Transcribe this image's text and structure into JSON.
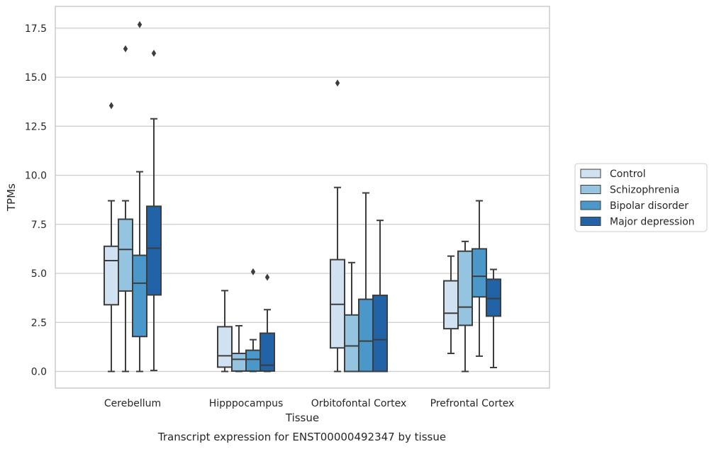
{
  "chart_data": {
    "type": "box",
    "caption": "Transcript expression for ENST00000492347 by tissue",
    "xlabel": "Tissue",
    "ylabel": "TPMs",
    "ylim": [
      -0.85,
      18.6
    ],
    "yticks": [
      0.0,
      2.5,
      5.0,
      7.5,
      10.0,
      12.5,
      15.0,
      17.5
    ],
    "ytick_labels": [
      "0.0",
      "2.5",
      "5.0",
      "7.5",
      "10.0",
      "12.5",
      "15.0",
      "17.5"
    ],
    "grid": "horizontal",
    "legend_position": "right",
    "categories": [
      "Cerebellum",
      "Hipppocampus",
      "Orbitofontal Cortex",
      "Prefrontal Cortex"
    ],
    "series": [
      {
        "name": "Control",
        "color": "#d0e1f2",
        "boxes": [
          {
            "whisker_low": 0.0,
            "q1": 3.4,
            "median": 5.65,
            "q3": 6.38,
            "whisker_high": 8.7,
            "outliers": [
              13.55
            ]
          },
          {
            "whisker_low": 0.0,
            "q1": 0.22,
            "median": 0.8,
            "q3": 2.28,
            "whisker_high": 4.12,
            "outliers": []
          },
          {
            "whisker_low": 0.0,
            "q1": 1.2,
            "median": 3.42,
            "q3": 5.7,
            "whisker_high": 9.38,
            "outliers": [
              14.7
            ]
          },
          {
            "whisker_low": 0.92,
            "q1": 2.18,
            "median": 2.97,
            "q3": 4.62,
            "whisker_high": 5.88,
            "outliers": []
          }
        ]
      },
      {
        "name": "Schizophrenia",
        "color": "#94c4df",
        "boxes": [
          {
            "whisker_low": 0.0,
            "q1": 4.1,
            "median": 6.22,
            "q3": 7.76,
            "whisker_high": 8.7,
            "outliers": [
              16.45
            ]
          },
          {
            "whisker_low": 0.0,
            "q1": 0.02,
            "median": 0.62,
            "q3": 0.92,
            "whisker_high": 2.33,
            "outliers": []
          },
          {
            "whisker_low": 0.0,
            "q1": 0.0,
            "median": 1.3,
            "q3": 2.88,
            "whisker_high": 5.55,
            "outliers": []
          },
          {
            "whisker_low": 0.0,
            "q1": 2.35,
            "median": 3.28,
            "q3": 6.13,
            "whisker_high": 6.63,
            "outliers": []
          }
        ]
      },
      {
        "name": "Bipolar disorder",
        "color": "#4a98c9",
        "boxes": [
          {
            "whisker_low": 0.0,
            "q1": 1.78,
            "median": 4.5,
            "q3": 5.92,
            "whisker_high": 10.18,
            "outliers": [
              17.68
            ]
          },
          {
            "whisker_low": 0.0,
            "q1": 0.02,
            "median": 0.62,
            "q3": 1.08,
            "whisker_high": 1.62,
            "outliers": [
              5.08
            ]
          },
          {
            "whisker_low": 0.0,
            "q1": 0.0,
            "median": 1.55,
            "q3": 3.68,
            "whisker_high": 9.1,
            "outliers": []
          },
          {
            "whisker_low": 0.78,
            "q1": 3.8,
            "median": 4.85,
            "q3": 6.25,
            "whisker_high": 8.7,
            "outliers": []
          }
        ]
      },
      {
        "name": "Major depression",
        "color": "#2263a8",
        "boxes": [
          {
            "whisker_low": 0.05,
            "q1": 3.9,
            "median": 6.28,
            "q3": 8.42,
            "whisker_high": 12.88,
            "outliers": [
              16.22
            ]
          },
          {
            "whisker_low": 0.0,
            "q1": 0.02,
            "median": 0.32,
            "q3": 1.95,
            "whisker_high": 3.15,
            "outliers": [
              4.8
            ]
          },
          {
            "whisker_low": 0.0,
            "q1": 0.0,
            "median": 1.62,
            "q3": 3.88,
            "whisker_high": 7.7,
            "outliers": []
          },
          {
            "whisker_low": 0.2,
            "q1": 2.82,
            "median": 3.72,
            "q3": 4.7,
            "whisker_high": 5.2,
            "outliers": []
          }
        ]
      }
    ]
  }
}
